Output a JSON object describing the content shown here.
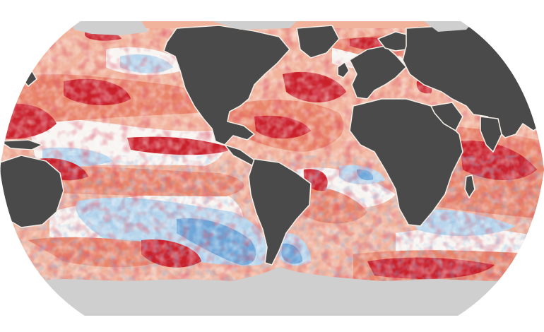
{
  "figure": {
    "type": "world-map",
    "projection": "robinson-like",
    "has_visible_text": false
  },
  "colors": {
    "background": "#ffffff",
    "land": "#4a4a4a",
    "ice": "#cfcfcf",
    "coast": "#f3ede6",
    "anomaly_scale": [
      "#2f6db5",
      "#6ea6d8",
      "#bcd8ee",
      "#f7f7f7",
      "#f4c2ad",
      "#eb8a6c",
      "#d9463a",
      "#b3121f"
    ]
  }
}
